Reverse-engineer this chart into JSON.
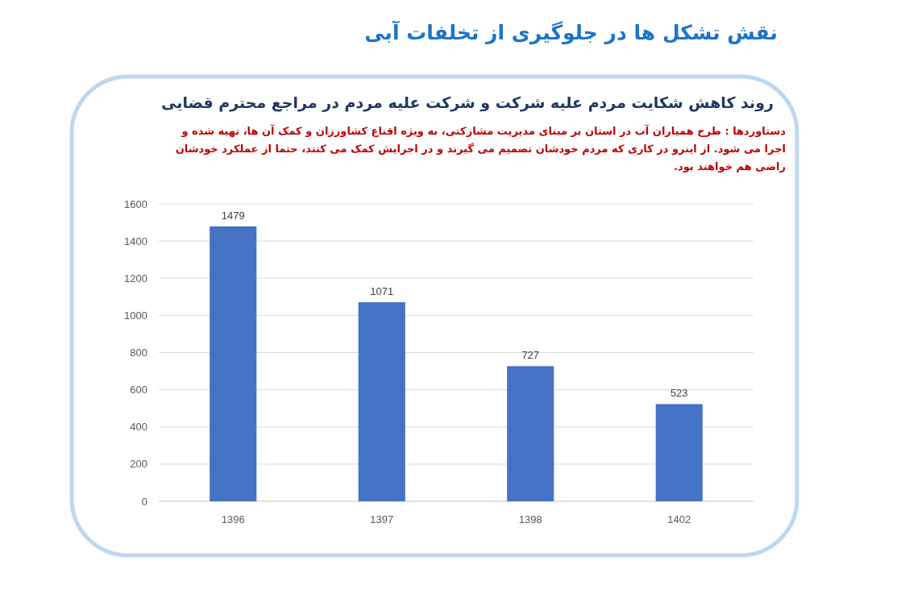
{
  "chart_data": {
    "type": "bar",
    "title": "نقش تشکل ها در جلوگیری از تخلفات آبی",
    "subtitle": "روند کاهش شکایت مردم علیه شرکت و شرکت علیه مردم در مراجع محترم قضایی",
    "annotations": [
      "دستاوردها : طرح همیاران آب در استان بر مبنای مدیریت مشارکتی، به ویژه اقناع کشاورزان و کمک آن ها، تهیه شده و اجرا می شود. از اینرو در کاری که مردم خودشان تصمیم می گیرند و در اجرایش کمک می کنند، حتما از عملکرد خودشان راضی هم خواهند بود."
    ],
    "categories": [
      "1396",
      "1397",
      "1398",
      "1402"
    ],
    "values": [
      1479,
      1071,
      727,
      523
    ],
    "color": "#4472c4",
    "ylim": [
      0,
      1600
    ],
    "yticks": [
      0,
      200,
      400,
      600,
      800,
      1000,
      1200,
      1400,
      1600
    ],
    "grid": "y",
    "data_labels": true
  }
}
